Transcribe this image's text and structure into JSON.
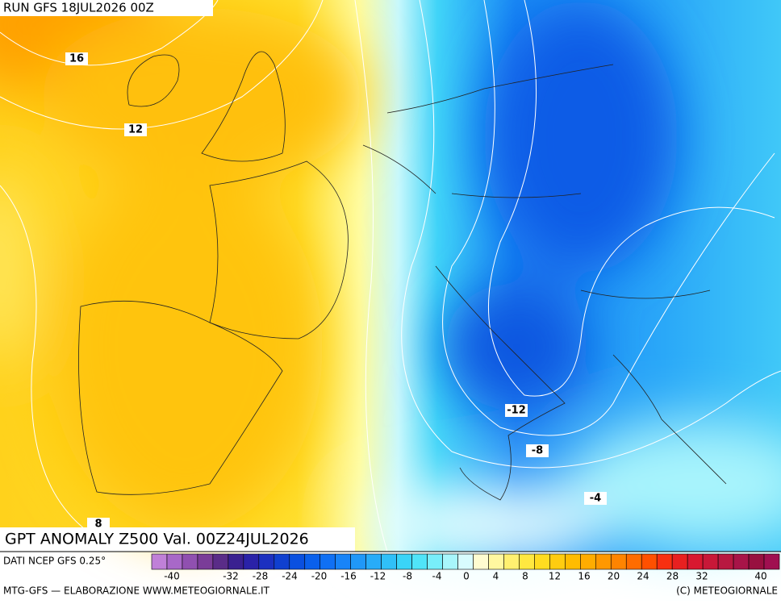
{
  "header": {
    "run": "RUN GFS 18JUL2026 00Z"
  },
  "title": "GPT ANOMALY Z500 Val. 00Z24JUL2026",
  "contour_labels": [
    16,
    12,
    8,
    -12,
    -8,
    -4
  ],
  "footer": {
    "source": "DATI NCEP GFS 0.25°",
    "credit": "MTG-GFS — ELABORAZIONE WWW.METEOGIORNALE.IT",
    "copyright": "(C) METEOGIORNALE"
  },
  "colorbar": {
    "ticks": [
      -40,
      -32,
      -28,
      -24,
      -20,
      -16,
      -12,
      -8,
      -4,
      0,
      4,
      8,
      12,
      16,
      20,
      24,
      28,
      32,
      40
    ],
    "colors": [
      "#c080d8",
      "#a868c8",
      "#9050b0",
      "#7a3c98",
      "#5a2c88",
      "#3a2090",
      "#2a22a8",
      "#1c30c0",
      "#1040d0",
      "#0a50e0",
      "#0a60ec",
      "#1070f4",
      "#1884f8",
      "#2098f8",
      "#28acf8",
      "#30c0f8",
      "#3ad4f8",
      "#50e4f8",
      "#78eefa",
      "#a8f6fc",
      "#d8fcfe",
      "#fffcd0",
      "#fff8a0",
      "#fff070",
      "#ffe840",
      "#ffdc20",
      "#ffcc10",
      "#ffbc00",
      "#ffac00",
      "#ff9800",
      "#ff8400",
      "#ff6c00",
      "#ff5000",
      "#f83010",
      "#e82020",
      "#d81830",
      "#c81838",
      "#b81840",
      "#a81448",
      "#981040",
      "#a01050"
    ]
  }
}
